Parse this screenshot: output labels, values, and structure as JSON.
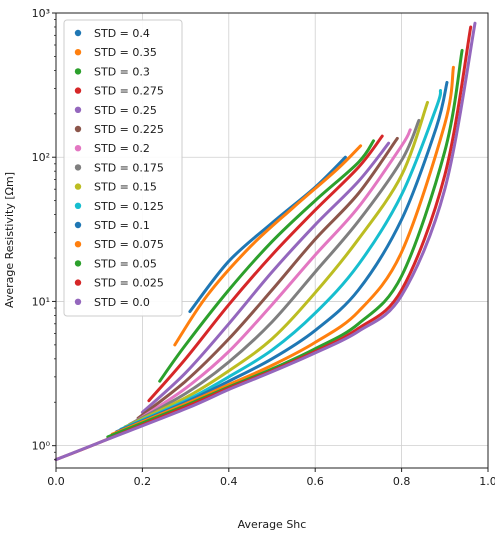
{
  "chart_data": {
    "type": "line",
    "title": "",
    "xlabel": "Average Shc",
    "ylabel": "Average Resistivity [Ωm]",
    "xlim": [
      0.0,
      1.0
    ],
    "ylim": [
      0.7,
      1000
    ],
    "yscale": "log",
    "grid": true,
    "legend_position": "top-left",
    "xticks": [
      {
        "value": 0.0,
        "label": "0.0"
      },
      {
        "value": 0.2,
        "label": "0.2"
      },
      {
        "value": 0.4,
        "label": "0.4"
      },
      {
        "value": 0.6,
        "label": "0.6"
      },
      {
        "value": 0.8,
        "label": "0.8"
      },
      {
        "value": 1.0,
        "label": "1.0"
      }
    ],
    "yticks": [
      {
        "value": 1,
        "label": "10⁰"
      },
      {
        "value": 10,
        "label": "10¹"
      },
      {
        "value": 100,
        "label": "10²"
      },
      {
        "value": 1000,
        "label": "10³"
      }
    ],
    "series": [
      {
        "name": "STD = 0.4",
        "color": "#1f77b4",
        "points": [
          [
            0.31,
            8.5
          ],
          [
            0.4,
            19
          ],
          [
            0.5,
            35
          ],
          [
            0.6,
            62
          ],
          [
            0.67,
            100
          ]
        ]
      },
      {
        "name": "STD = 0.35",
        "color": "#ff7f0e",
        "points": [
          [
            0.275,
            5
          ],
          [
            0.35,
            11
          ],
          [
            0.45,
            24
          ],
          [
            0.55,
            45
          ],
          [
            0.65,
            82
          ],
          [
            0.705,
            120
          ]
        ]
      },
      {
        "name": "STD = 0.3",
        "color": "#2ca02c",
        "points": [
          [
            0.24,
            2.8
          ],
          [
            0.3,
            5
          ],
          [
            0.4,
            12
          ],
          [
            0.5,
            26
          ],
          [
            0.6,
            50
          ],
          [
            0.7,
            92
          ],
          [
            0.735,
            130
          ]
        ]
      },
      {
        "name": "STD = 0.275",
        "color": "#d62728",
        "points": [
          [
            0.215,
            2.05
          ],
          [
            0.3,
            4
          ],
          [
            0.4,
            9.5
          ],
          [
            0.5,
            21
          ],
          [
            0.6,
            43
          ],
          [
            0.7,
            85
          ],
          [
            0.755,
            140
          ]
        ]
      },
      {
        "name": "STD = 0.25",
        "color": "#9467bd",
        "points": [
          [
            0.2,
            1.7
          ],
          [
            0.3,
            3.2
          ],
          [
            0.4,
            7
          ],
          [
            0.5,
            16
          ],
          [
            0.6,
            34
          ],
          [
            0.7,
            68
          ],
          [
            0.77,
            125
          ]
        ]
      },
      {
        "name": "STD = 0.225",
        "color": "#8c564b",
        "points": [
          [
            0.19,
            1.55
          ],
          [
            0.3,
            2.8
          ],
          [
            0.4,
            5.5
          ],
          [
            0.5,
            12
          ],
          [
            0.6,
            27
          ],
          [
            0.7,
            56
          ],
          [
            0.79,
            135
          ]
        ]
      },
      {
        "name": "STD = 0.2",
        "color": "#e377c2",
        "points": [
          [
            0.18,
            1.45
          ],
          [
            0.3,
            2.5
          ],
          [
            0.4,
            4.5
          ],
          [
            0.5,
            9.5
          ],
          [
            0.6,
            21
          ],
          [
            0.7,
            45
          ],
          [
            0.8,
            120
          ],
          [
            0.82,
            155
          ]
        ]
      },
      {
        "name": "STD = 0.175",
        "color": "#7f7f7f",
        "points": [
          [
            0.17,
            1.4
          ],
          [
            0.3,
            2.3
          ],
          [
            0.4,
            3.8
          ],
          [
            0.5,
            7.2
          ],
          [
            0.6,
            16
          ],
          [
            0.7,
            36
          ],
          [
            0.8,
            95
          ],
          [
            0.84,
            180
          ]
        ]
      },
      {
        "name": "STD = 0.15",
        "color": "#bcbd22",
        "points": [
          [
            0.16,
            1.35
          ],
          [
            0.3,
            2.15
          ],
          [
            0.4,
            3.3
          ],
          [
            0.5,
            5.5
          ],
          [
            0.6,
            11.5
          ],
          [
            0.7,
            27
          ],
          [
            0.8,
            75
          ],
          [
            0.86,
            240
          ]
        ]
      },
      {
        "name": "STD = 0.125",
        "color": "#17becf",
        "points": [
          [
            0.15,
            1.3
          ],
          [
            0.3,
            2.05
          ],
          [
            0.4,
            3
          ],
          [
            0.5,
            4.6
          ],
          [
            0.6,
            8.3
          ],
          [
            0.7,
            18
          ],
          [
            0.8,
            55
          ],
          [
            0.88,
            220
          ],
          [
            0.89,
            290
          ]
        ]
      },
      {
        "name": "STD = 0.1",
        "color": "#1f77b4",
        "points": [
          [
            0.14,
            1.25
          ],
          [
            0.3,
            2
          ],
          [
            0.4,
            2.8
          ],
          [
            0.5,
            4
          ],
          [
            0.6,
            6.3
          ],
          [
            0.7,
            12
          ],
          [
            0.8,
            37
          ],
          [
            0.88,
            160
          ],
          [
            0.905,
            330
          ]
        ]
      },
      {
        "name": "STD = 0.075",
        "color": "#ff7f0e",
        "points": [
          [
            0.13,
            1.2
          ],
          [
            0.3,
            1.95
          ],
          [
            0.4,
            2.65
          ],
          [
            0.5,
            3.6
          ],
          [
            0.6,
            5.2
          ],
          [
            0.7,
            8.5
          ],
          [
            0.8,
            22
          ],
          [
            0.9,
            170
          ],
          [
            0.92,
            420
          ]
        ]
      },
      {
        "name": "STD = 0.05",
        "color": "#2ca02c",
        "points": [
          [
            0.12,
            1.15
          ],
          [
            0.3,
            1.9
          ],
          [
            0.4,
            2.55
          ],
          [
            0.5,
            3.4
          ],
          [
            0.6,
            4.7
          ],
          [
            0.7,
            7
          ],
          [
            0.8,
            15
          ],
          [
            0.9,
            110
          ],
          [
            0.94,
            550
          ]
        ]
      },
      {
        "name": "STD = 0.025",
        "color": "#d62728",
        "points": [
          [
            0.0,
            0.8
          ],
          [
            0.1,
            1.05
          ],
          [
            0.3,
            1.85
          ],
          [
            0.4,
            2.5
          ],
          [
            0.5,
            3.3
          ],
          [
            0.6,
            4.5
          ],
          [
            0.7,
            6.5
          ],
          [
            0.8,
            12
          ],
          [
            0.9,
            75
          ],
          [
            0.96,
            800
          ]
        ]
      },
      {
        "name": "STD = 0.0",
        "color": "#9467bd",
        "points": [
          [
            0.0,
            0.8
          ],
          [
            0.1,
            1.05
          ],
          [
            0.3,
            1.8
          ],
          [
            0.4,
            2.45
          ],
          [
            0.5,
            3.25
          ],
          [
            0.6,
            4.4
          ],
          [
            0.7,
            6.2
          ],
          [
            0.8,
            11
          ],
          [
            0.9,
            60
          ],
          [
            0.97,
            850
          ]
        ]
      }
    ]
  }
}
